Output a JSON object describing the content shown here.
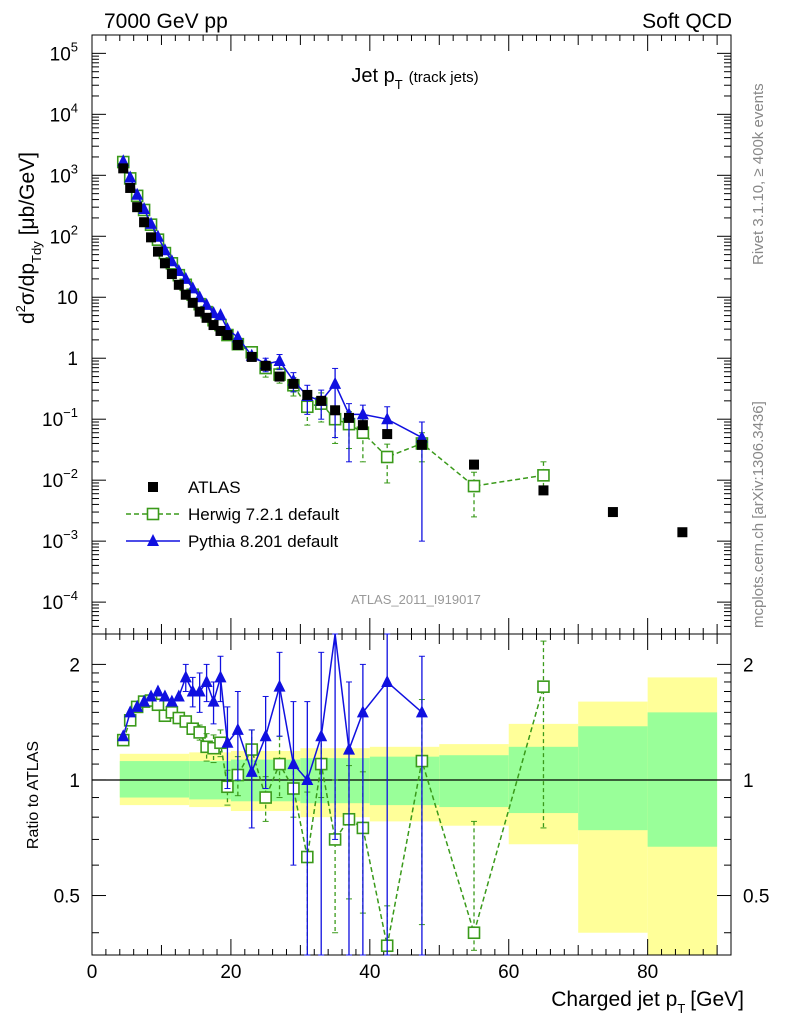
{
  "header": {
    "left": "7000 GeV pp",
    "right": "Soft QCD"
  },
  "side_text": {
    "rivet": "Rivet 3.1.10, ≥ 400k events",
    "mcplots": "mcplots.cern.ch [arXiv:1306.3436]"
  },
  "analysis_id": "ATLAS_2011_I919017",
  "colors": {
    "atlas": "#000000",
    "herwig": "#3a9a1a",
    "pythia": "#1010e0",
    "band_inner": "#99ff99",
    "band_outer": "#ffff99"
  },
  "chart_data": [
    {
      "type": "scatter",
      "title_main": "Jet p",
      "title_sub": "T",
      "title_note": "(track jets)",
      "ylabel": "d²σ/dp_Tdy [μb/GeV]",
      "yscale": "log",
      "ylim": [
        3e-05,
        200000
      ],
      "xlim": [
        0,
        92
      ],
      "yticks": [
        {
          "v": 100000,
          "base": "10",
          "exp": "5"
        },
        {
          "v": 10000,
          "base": "10",
          "exp": "4"
        },
        {
          "v": 1000,
          "base": "10",
          "exp": "3"
        },
        {
          "v": 100,
          "base": "10",
          "exp": "2"
        },
        {
          "v": 10,
          "base": "10",
          "exp": ""
        },
        {
          "v": 1,
          "base": "1",
          "exp": ""
        },
        {
          "v": 0.1,
          "base": "10",
          "exp": "−1"
        },
        {
          "v": 0.01,
          "base": "10",
          "exp": "−2"
        },
        {
          "v": 0.001,
          "base": "10",
          "exp": "−3"
        },
        {
          "v": 0.0001,
          "base": "10",
          "exp": "−4"
        }
      ],
      "legend": [
        {
          "key": "atlas",
          "label": "ATLAS"
        },
        {
          "key": "herwig",
          "label": "Herwig 7.2.1 default"
        },
        {
          "key": "pythia",
          "label": "Pythia 8.201 default"
        }
      ],
      "series": [
        {
          "name": "ATLAS",
          "key": "atlas",
          "x": [
            4.5,
            5.5,
            6.5,
            7.5,
            8.5,
            9.5,
            10.5,
            11.5,
            12.5,
            13.5,
            14.5,
            15.5,
            16.5,
            17.5,
            18.5,
            19.5,
            21,
            23,
            25,
            27,
            29,
            31,
            33,
            35,
            37,
            39,
            42.5,
            47.5,
            55,
            65,
            75,
            85
          ],
          "y": [
            1300,
            620,
            300,
            170,
            96,
            56,
            36,
            24,
            16,
            11,
            8.1,
            5.8,
            4.6,
            3.5,
            2.8,
            2.4,
            1.65,
            1.05,
            0.75,
            0.5,
            0.38,
            0.25,
            0.2,
            0.14,
            0.105,
            0.08,
            0.057,
            0.038,
            0.018,
            0.0068,
            0.003,
            0.0014
          ]
        },
        {
          "name": "Herwig 7.2.1 default",
          "key": "herwig",
          "x": [
            4.5,
            5.5,
            6.5,
            7.5,
            8.5,
            9.5,
            10.5,
            11.5,
            12.5,
            13.5,
            14.5,
            15.5,
            16.5,
            17.5,
            18.5,
            19.5,
            21,
            23,
            25,
            27,
            29,
            31,
            33,
            35,
            37,
            39,
            42.5,
            47.5,
            55,
            65
          ],
          "y": [
            1650,
            890,
            460,
            270,
            155,
            88,
            53,
            36,
            23,
            16,
            11,
            7.7,
            5.7,
            4.2,
            3.5,
            2.4,
            1.7,
            1.25,
            0.69,
            0.54,
            0.36,
            0.16,
            0.18,
            0.1,
            0.083,
            0.06,
            0.024,
            0.04,
            0.008,
            0.012
          ],
          "err_lo": [
            0,
            0,
            0,
            0,
            0,
            0,
            0,
            0,
            0,
            0,
            0,
            0,
            0,
            0,
            0,
            0,
            0,
            0,
            0.2,
            0.15,
            0.12,
            0.08,
            0.09,
            0.06,
            0.05,
            0.04,
            0.015,
            0.02,
            0.0055,
            0.0045
          ],
          "err_hi": [
            0,
            0,
            0,
            0,
            0,
            0,
            0,
            0,
            0,
            0,
            0,
            0,
            0,
            0,
            0,
            0,
            0,
            0,
            0.2,
            0.15,
            0.12,
            0.08,
            0.09,
            0.06,
            0.05,
            0.04,
            0.015,
            0.02,
            0.0055,
            0.008
          ]
        },
        {
          "name": "Pythia 8.201 default",
          "key": "pythia",
          "x": [
            4.5,
            5.5,
            6.5,
            7.5,
            8.5,
            9.5,
            10.5,
            11.5,
            12.5,
            13.5,
            14.5,
            15.5,
            16.5,
            17.5,
            18.5,
            19.5,
            21,
            23,
            25,
            27,
            29,
            31,
            33,
            35,
            37,
            39,
            42.5,
            47.5
          ],
          "y": [
            1700,
            920,
            480,
            280,
            160,
            98,
            59,
            39,
            27,
            20,
            14,
            10,
            7.5,
            5.5,
            5.1,
            3.0,
            2.2,
            1.1,
            0.8,
            0.9,
            0.43,
            0.24,
            0.2,
            0.38,
            0.12,
            0.12,
            0.1,
            0.05
          ],
          "err_lo": [
            0,
            0,
            0,
            0,
            0,
            0,
            0,
            0,
            0,
            0,
            0,
            0,
            0,
            0,
            0,
            0,
            0,
            0,
            0.2,
            0.25,
            0.15,
            0.12,
            0.1,
            0.33,
            0.1,
            0.05,
            0.05,
            0.049
          ],
          "err_hi": [
            0,
            0,
            0,
            0,
            0,
            0,
            0,
            0,
            0,
            0,
            0,
            0,
            0,
            0,
            0,
            0,
            0,
            0,
            0.2,
            0.25,
            0.15,
            0.12,
            0.1,
            0.3,
            0.06,
            0.05,
            0.06,
            0.04
          ]
        }
      ]
    },
    {
      "type": "scatter",
      "ylabel": "Ratio to ATLAS",
      "xlabel": "Charged jet p_T [GeV]",
      "yscale": "log",
      "ylim": [
        0.35,
        2.4
      ],
      "xlim": [
        0,
        92
      ],
      "xticks": [
        0,
        20,
        40,
        60,
        80
      ],
      "yticks": [
        {
          "v": 0.5,
          "label": "0.5"
        },
        {
          "v": 1,
          "label": "1"
        },
        {
          "v": 2,
          "label": "2"
        }
      ],
      "bands": [
        {
          "x0": 4,
          "x1": 14,
          "inner": [
            0.9,
            1.12
          ],
          "outer": [
            0.86,
            1.17
          ]
        },
        {
          "x0": 14,
          "x1": 20,
          "inner": [
            0.89,
            1.12
          ],
          "outer": [
            0.85,
            1.18
          ]
        },
        {
          "x0": 20,
          "x1": 30,
          "inner": [
            0.88,
            1.13
          ],
          "outer": [
            0.83,
            1.19
          ]
        },
        {
          "x0": 30,
          "x1": 40,
          "inner": [
            0.87,
            1.14
          ],
          "outer": [
            0.8,
            1.21
          ]
        },
        {
          "x0": 40,
          "x1": 50,
          "inner": [
            0.86,
            1.15
          ],
          "outer": [
            0.78,
            1.22
          ]
        },
        {
          "x0": 50,
          "x1": 60,
          "inner": [
            0.85,
            1.16
          ],
          "outer": [
            0.76,
            1.24
          ]
        },
        {
          "x0": 60,
          "x1": 70,
          "inner": [
            0.82,
            1.22
          ],
          "outer": [
            0.68,
            1.4
          ]
        },
        {
          "x0": 70,
          "x1": 80,
          "inner": [
            0.74,
            1.38
          ],
          "outer": [
            0.4,
            1.6
          ]
        },
        {
          "x0": 80,
          "x1": 90,
          "inner": [
            0.67,
            1.5
          ],
          "outer": [
            0.35,
            1.85
          ]
        }
      ],
      "series": [
        {
          "name": "Herwig 7.2.1 default",
          "key": "herwig",
          "x": [
            4.5,
            5.5,
            6.5,
            7.5,
            8.5,
            9.5,
            10.5,
            11.5,
            12.5,
            13.5,
            14.5,
            15.5,
            16.5,
            17.5,
            18.5,
            19.5,
            21,
            23,
            25,
            27,
            29,
            31,
            33,
            35,
            37,
            39,
            42.5,
            47.5,
            55,
            65
          ],
          "y": [
            1.27,
            1.43,
            1.55,
            1.6,
            1.61,
            1.57,
            1.47,
            1.5,
            1.45,
            1.42,
            1.36,
            1.33,
            1.22,
            1.21,
            1.25,
            0.96,
            1.03,
            1.2,
            0.9,
            1.1,
            0.95,
            0.63,
            1.1,
            0.7,
            0.79,
            0.75,
            0.37,
            1.12,
            0.4,
            1.75
          ],
          "err_lo": [
            0,
            0,
            0,
            0,
            0,
            0,
            0,
            0,
            0,
            0,
            0,
            0.06,
            0.1,
            0.1,
            0.1,
            0.1,
            0.12,
            0.15,
            0.12,
            0.2,
            0.15,
            0.3,
            0.2,
            0.3,
            0.3,
            0.3,
            0.1,
            0.7,
            0.04,
            1.0
          ],
          "err_hi": [
            0,
            0,
            0,
            0,
            0,
            0,
            0,
            0,
            0,
            0,
            0,
            0.06,
            0.1,
            0.1,
            0.1,
            0.1,
            0.12,
            0.15,
            0.12,
            0.2,
            0.15,
            0.3,
            0.2,
            0.3,
            0.3,
            0.3,
            0.1,
            0.5,
            0.38,
            0.55
          ]
        },
        {
          "name": "Pythia 8.201 default",
          "key": "pythia",
          "x": [
            4.5,
            5.5,
            6.5,
            7.5,
            8.5,
            9.5,
            10.5,
            11.5,
            12.5,
            13.5,
            14.5,
            15.5,
            16.5,
            17.5,
            18.5,
            19.5,
            21,
            23,
            25,
            27,
            29,
            31,
            33,
            35,
            37,
            39,
            42.5,
            47.5
          ],
          "y": [
            1.3,
            1.5,
            1.55,
            1.6,
            1.65,
            1.7,
            1.65,
            1.6,
            1.65,
            1.85,
            1.7,
            1.7,
            1.8,
            1.6,
            1.85,
            1.25,
            1.35,
            1.05,
            1.3,
            1.75,
            1.1,
            1.0,
            1.3,
            2.6,
            1.2,
            1.5,
            1.8,
            1.5
          ],
          "err_lo": [
            0,
            0,
            0,
            0,
            0,
            0,
            0,
            0,
            0,
            0.15,
            0.15,
            0.2,
            0.2,
            0.2,
            0.25,
            0.3,
            0.35,
            0.3,
            0.35,
            0.45,
            0.5,
            0.65,
            1.0,
            1.9,
            1.0,
            1.2,
            1.5,
            1.45
          ],
          "err_hi": [
            0,
            0,
            0,
            0,
            0,
            0,
            0,
            0,
            0,
            0.15,
            0.15,
            0.2,
            0.2,
            0.2,
            0.25,
            0.3,
            0.35,
            0.3,
            0.35,
            0.4,
            0.5,
            0.6,
            0.85,
            0.4,
            0.6,
            0.5,
            0.6,
            0.6
          ]
        }
      ]
    }
  ]
}
